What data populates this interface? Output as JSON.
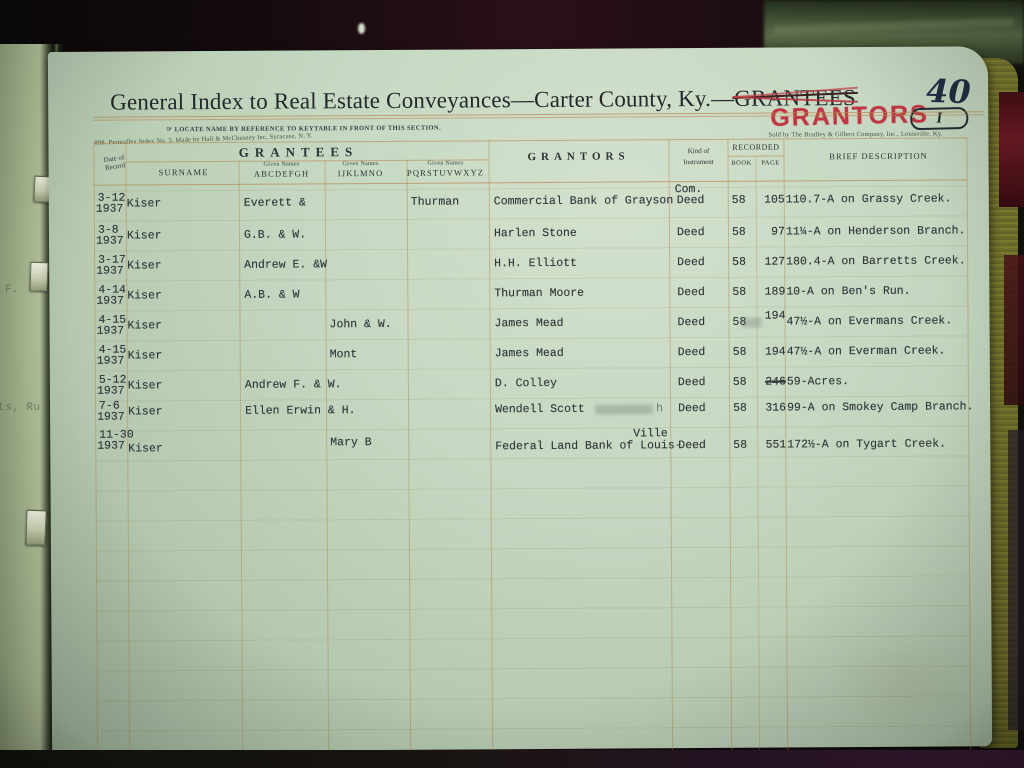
{
  "page_header": {
    "title_main": "General Index to Real Estate Conveyances—Carter County, Ky.—",
    "title_struck": "GRANTEES",
    "page_number": "40",
    "stamp": "GRANTORS",
    "badge": "I",
    "subtitle": "☞ LOCATE NAME BY REFERENCE TO KEYTABLE IN FRONT OF THIS SECTION.",
    "maker_line": "898.  Permaflex Index No. 3.   Made by Hall & McChesney Inc, Syracuse, N. Y.",
    "sold_line": "Sold by The Bradley & Gilbert Company, Inc., Louisville, Ky."
  },
  "table_headers": {
    "date_l1": "Date of",
    "date_l2": "Record",
    "grantees_group": "GRANTEES",
    "surname": "SURNAME",
    "given_names": "Given Names",
    "col_ah": "ABCDEFGH",
    "col_io": "IJKLMNO",
    "col_pz": "PQRSTUVWXYZ",
    "grantors": "GRANTORS",
    "kind_l1": "Kind of",
    "kind_l2": "Instrument",
    "recorded": "RECORDED",
    "book": "BOOK",
    "page": "PAGE",
    "brief": "BRIEF DESCRIPTION"
  },
  "rows": [
    {
      "d1": "3-12",
      "d2": "1937",
      "surname": "Kiser",
      "ah": "Everett &",
      "io": "",
      "pz": "Thurman",
      "grantor": "Commercial Bank of Grayson",
      "kind": "Deed",
      "kind_above": "Com.",
      "book": "58",
      "page": "105",
      "brief": "110.7-A on Grassy Creek."
    },
    {
      "d1": "3-8",
      "d2": "1937",
      "surname": "Kiser",
      "ah": "G.B. & W.",
      "io": "",
      "pz": "",
      "grantor": "Harlen Stone",
      "kind": "Deed",
      "book": "58",
      "page": "97",
      "brief": "11¼-A on Henderson Branch."
    },
    {
      "d1": "3-17",
      "d2": "1937",
      "surname": "Kiser",
      "ah": "Andrew E. &W",
      "io": "",
      "pz": "",
      "grantor": "H.H. Elliott",
      "kind": "Deed",
      "book": "58",
      "page": "127",
      "brief": "180.4-A on Barretts Creek."
    },
    {
      "d1": "4-14",
      "d2": "1937",
      "surname": "Kiser",
      "ah": "A.B. & W",
      "io": "",
      "pz": "",
      "grantor": "Thurman Moore",
      "kind": "Deed",
      "book": "58",
      "page": "189",
      "brief": "10-A on Ben's Run."
    },
    {
      "d1": "4-15",
      "d2": "1937",
      "surname": "Kiser",
      "ah": "",
      "io": "John & W.",
      "pz": "",
      "grantor": "James Mead",
      "kind": "Deed",
      "book": "58",
      "page": "194",
      "page_raised": true,
      "brief": "47½-A on Evermans Creek."
    },
    {
      "d1": "4-15",
      "d2": "1937",
      "surname": "Kiser",
      "ah": "",
      "io": "Mont",
      "pz": "",
      "grantor": "James Mead",
      "kind": "Deed",
      "book": "58",
      "page": "194",
      "brief": "47½-A on Everman Creek."
    },
    {
      "d1": "5-12",
      "d2": "1937",
      "surname": "Kiser",
      "ah": "Andrew F. & W.",
      "io": "",
      "pz": "",
      "grantor": "D. Colley",
      "kind": "Deed",
      "book": "58",
      "page": "246",
      "page_struck": true,
      "brief": "59-Acres."
    },
    {
      "d1": "7-6",
      "d2": "1937",
      "surname": "Kiser",
      "ah": "Ellen Erwin & H.",
      "io": "",
      "pz": "",
      "grantor": "Wendell Scott",
      "grantor_erased": true,
      "grantor_erased_tail": "h",
      "kind": "Deed",
      "book": "58",
      "page": "316",
      "brief": "99-A on Smokey Camp Branch."
    },
    {
      "d1": "11-30",
      "d2": "1937",
      "surname": "Kiser",
      "ah": "",
      "io": "Mary B",
      "pz": "",
      "grantor": "Federal Land Bank of Louis-",
      "grantor_above": "Ville",
      "kind": "Deed",
      "book": "58",
      "page": "551",
      "brief": "172½-A on Tygart Creek."
    }
  ],
  "artifacts": {
    "left_fragment_1": "F.",
    "left_fragment_2": "ts, Ru"
  },
  "colors": {
    "page_green": "#c5d8c1",
    "rule_tan": "#ba864d",
    "stamp_red": "#c22838",
    "typewriter_ink": "#34383d",
    "handwriting_ink": "#1f2c42"
  }
}
